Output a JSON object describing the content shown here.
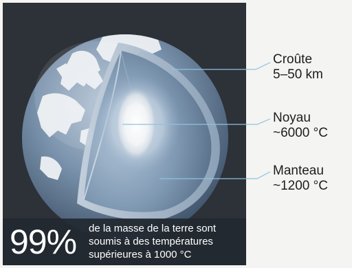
{
  "labels": {
    "crust": {
      "name": "Croûte",
      "value": "5–50 km"
    },
    "core": {
      "name": "Noyau",
      "value": "~6000 °C"
    },
    "mantle": {
      "name": "Manteau",
      "value": "~1200 °C"
    }
  },
  "stat": {
    "value": "99%",
    "lines": [
      "de la masse de la terre sont",
      "soumis à des températures",
      "supérieures à 1000 °C"
    ]
  },
  "colors": {
    "panel": "#2d3138",
    "leader_line": "#8ec3e0",
    "ocean": "#5f7a96",
    "land": "#f0f2f4",
    "core_glow": "#ffffff"
  },
  "icons": [
    "earth-cutaway-illustration"
  ]
}
